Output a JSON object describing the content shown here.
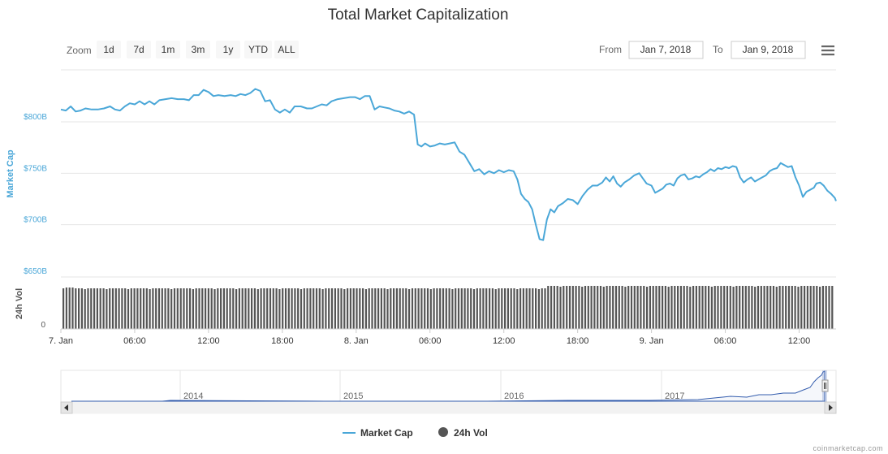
{
  "toolbar": {
    "zoom_label": "Zoom",
    "zoom_buttons": [
      "1d",
      "7d",
      "1m",
      "3m",
      "1y",
      "YTD",
      "ALL"
    ],
    "from_label": "From",
    "from_value": "Jan 7, 2018",
    "to_label": "To",
    "to_value": "Jan 9, 2018"
  },
  "credit": "coinmarketcap.com",
  "colors": {
    "market_cap": "#4aa7d8",
    "volume": "#555555",
    "navigator": "#335cad"
  },
  "chart_data": {
    "type": "line",
    "title": "Total Market Capitalization",
    "ylabel": "Market Cap",
    "ylabel2": "24h Vol",
    "yticks": [
      "$650B",
      "$700B",
      "$750B",
      "$800B"
    ],
    "yticks_values": [
      650,
      700,
      750,
      800
    ],
    "ylim": [
      650,
      850
    ],
    "vol_tick": "0",
    "x_ticks": [
      {
        "t": 0,
        "label": "7. Jan"
      },
      {
        "t": 6,
        "label": "06:00"
      },
      {
        "t": 12,
        "label": "12:00"
      },
      {
        "t": 18,
        "label": "18:00"
      },
      {
        "t": 24,
        "label": "8. Jan"
      },
      {
        "t": 30,
        "label": "06:00"
      },
      {
        "t": 36,
        "label": "12:00"
      },
      {
        "t": 42,
        "label": "18:00"
      },
      {
        "t": 48,
        "label": "9. Jan"
      },
      {
        "t": 54,
        "label": "06:00"
      },
      {
        "t": 60,
        "label": "12:00"
      }
    ],
    "xlim_hours": [
      0,
      63
    ],
    "series": [
      {
        "name": "Market Cap",
        "unit": "B USD",
        "points": [
          [
            0.0,
            812
          ],
          [
            0.4,
            811
          ],
          [
            0.8,
            815
          ],
          [
            1.2,
            810
          ],
          [
            1.6,
            811
          ],
          [
            2.0,
            813
          ],
          [
            2.5,
            812
          ],
          [
            3.0,
            812
          ],
          [
            3.5,
            813
          ],
          [
            4.0,
            815
          ],
          [
            4.4,
            812
          ],
          [
            4.8,
            811
          ],
          [
            5.2,
            815
          ],
          [
            5.6,
            818
          ],
          [
            6.0,
            817
          ],
          [
            6.4,
            820
          ],
          [
            6.8,
            817
          ],
          [
            7.2,
            820
          ],
          [
            7.6,
            817
          ],
          [
            8.0,
            821
          ],
          [
            8.5,
            822
          ],
          [
            9.0,
            823
          ],
          [
            9.5,
            822
          ],
          [
            10.0,
            822
          ],
          [
            10.4,
            821
          ],
          [
            10.8,
            826
          ],
          [
            11.2,
            826
          ],
          [
            11.6,
            831
          ],
          [
            12.0,
            829
          ],
          [
            12.4,
            825
          ],
          [
            12.8,
            826
          ],
          [
            13.3,
            825
          ],
          [
            13.8,
            826
          ],
          [
            14.2,
            825
          ],
          [
            14.6,
            827
          ],
          [
            15.0,
            826
          ],
          [
            15.4,
            828
          ],
          [
            15.8,
            832
          ],
          [
            16.2,
            830
          ],
          [
            16.6,
            820
          ],
          [
            17.0,
            821
          ],
          [
            17.4,
            812
          ],
          [
            17.8,
            809
          ],
          [
            18.2,
            812
          ],
          [
            18.6,
            809
          ],
          [
            19.0,
            815
          ],
          [
            19.5,
            815
          ],
          [
            20.0,
            813
          ],
          [
            20.4,
            813
          ],
          [
            20.8,
            815
          ],
          [
            21.2,
            817
          ],
          [
            21.6,
            816
          ],
          [
            22.0,
            820
          ],
          [
            22.5,
            822
          ],
          [
            23.0,
            823
          ],
          [
            23.5,
            824
          ],
          [
            23.9,
            824
          ],
          [
            24.3,
            822
          ],
          [
            24.7,
            825
          ],
          [
            25.1,
            825
          ],
          [
            25.5,
            812
          ],
          [
            25.9,
            815
          ],
          [
            26.3,
            814
          ],
          [
            26.7,
            813
          ],
          [
            27.1,
            811
          ],
          [
            27.5,
            810
          ],
          [
            27.9,
            808
          ],
          [
            28.3,
            810
          ],
          [
            28.7,
            807
          ],
          [
            29.0,
            778
          ],
          [
            29.3,
            776
          ],
          [
            29.6,
            779
          ],
          [
            30.0,
            776
          ],
          [
            30.4,
            777
          ],
          [
            30.8,
            779
          ],
          [
            31.2,
            778
          ],
          [
            31.6,
            779
          ],
          [
            32.0,
            780
          ],
          [
            32.4,
            771
          ],
          [
            32.8,
            768
          ],
          [
            33.2,
            760
          ],
          [
            33.6,
            752
          ],
          [
            34.0,
            754
          ],
          [
            34.4,
            749
          ],
          [
            34.8,
            752
          ],
          [
            35.2,
            750
          ],
          [
            35.6,
            753
          ],
          [
            36.0,
            751
          ],
          [
            36.4,
            753
          ],
          [
            36.8,
            752
          ],
          [
            37.1,
            744
          ],
          [
            37.4,
            730
          ],
          [
            37.7,
            725
          ],
          [
            38.0,
            722
          ],
          [
            38.3,
            715
          ],
          [
            38.6,
            700
          ],
          [
            38.9,
            686
          ],
          [
            39.2,
            685
          ],
          [
            39.5,
            705
          ],
          [
            39.8,
            715
          ],
          [
            40.1,
            712
          ],
          [
            40.4,
            718
          ],
          [
            40.8,
            721
          ],
          [
            41.2,
            725
          ],
          [
            41.6,
            724
          ],
          [
            42.0,
            720
          ],
          [
            42.4,
            728
          ],
          [
            42.8,
            734
          ],
          [
            43.2,
            738
          ],
          [
            43.6,
            738
          ],
          [
            44.0,
            741
          ],
          [
            44.3,
            746
          ],
          [
            44.6,
            742
          ],
          [
            44.9,
            747
          ],
          [
            45.2,
            740
          ],
          [
            45.5,
            737
          ],
          [
            45.8,
            741
          ],
          [
            46.2,
            744
          ],
          [
            46.6,
            748
          ],
          [
            47.0,
            750
          ],
          [
            47.3,
            745
          ],
          [
            47.6,
            740
          ],
          [
            48.0,
            738
          ],
          [
            48.3,
            731
          ],
          [
            48.6,
            733
          ],
          [
            48.9,
            735
          ],
          [
            49.2,
            739
          ],
          [
            49.5,
            740
          ],
          [
            49.8,
            738
          ],
          [
            50.1,
            745
          ],
          [
            50.4,
            748
          ],
          [
            50.7,
            749
          ],
          [
            51.0,
            744
          ],
          [
            51.3,
            745
          ],
          [
            51.6,
            747
          ],
          [
            51.9,
            746
          ],
          [
            52.2,
            749
          ],
          [
            52.5,
            751
          ],
          [
            52.8,
            754
          ],
          [
            53.1,
            752
          ],
          [
            53.4,
            755
          ],
          [
            53.7,
            754
          ],
          [
            54.0,
            756
          ],
          [
            54.3,
            755
          ],
          [
            54.6,
            757
          ],
          [
            54.9,
            756
          ],
          [
            55.2,
            746
          ],
          [
            55.5,
            741
          ],
          [
            55.8,
            744
          ],
          [
            56.1,
            746
          ],
          [
            56.4,
            742
          ],
          [
            56.7,
            744
          ],
          [
            57.0,
            746
          ],
          [
            57.3,
            748
          ],
          [
            57.6,
            752
          ],
          [
            57.9,
            754
          ],
          [
            58.2,
            755
          ],
          [
            58.5,
            760
          ],
          [
            58.8,
            758
          ],
          [
            59.1,
            756
          ],
          [
            59.4,
            757
          ],
          [
            59.7,
            746
          ],
          [
            60.0,
            738
          ],
          [
            60.3,
            727
          ],
          [
            60.6,
            732
          ],
          [
            60.9,
            734
          ],
          [
            61.2,
            736
          ],
          [
            61.4,
            740
          ],
          [
            61.7,
            741
          ],
          [
            62.0,
            738
          ],
          [
            62.3,
            733
          ],
          [
            62.6,
            730
          ],
          [
            62.9,
            726
          ],
          [
            63.0,
            723
          ]
        ]
      },
      {
        "name": "24h Vol",
        "relative_values": "bars drawn from volume series shape (higher after ~40h)"
      }
    ],
    "navigator": {
      "year_labels": [
        "2014",
        "2015",
        "2016",
        "2017"
      ]
    }
  },
  "legend": {
    "market_cap": "Market Cap",
    "volume": "24h Vol"
  }
}
